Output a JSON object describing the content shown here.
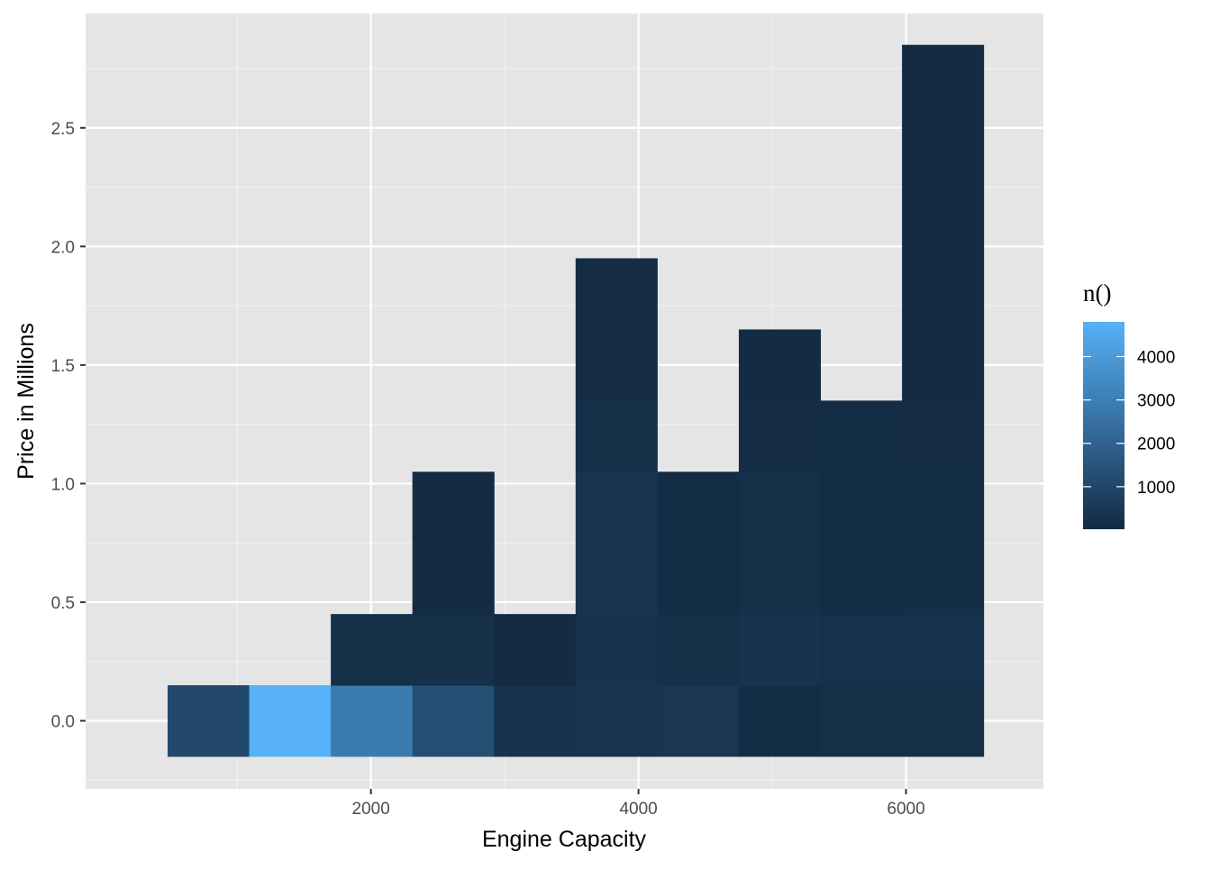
{
  "chart_data": {
    "type": "heatmap",
    "title": "",
    "xlabel": "Engine Capacity",
    "ylabel": "Price in Millions",
    "xlim": [
      -133,
      7027
    ],
    "ylim": [
      -0.287,
      2.982
    ],
    "x_ticks": [
      2000,
      4000,
      6000
    ],
    "x_tick_labels": [
      "2000",
      "4000",
      "6000"
    ],
    "x_minor": [
      1000,
      3000,
      5000
    ],
    "y_ticks": [
      0.0,
      0.5,
      1.0,
      1.5,
      2.0,
      2.5
    ],
    "y_tick_labels": [
      "0.0",
      "0.5",
      "1.0",
      "1.5",
      "2.0",
      "2.5"
    ],
    "y_minor": [
      -0.25,
      0.25,
      0.75,
      1.25,
      1.75,
      2.25,
      2.75
    ],
    "grid": true,
    "legend": {
      "title": "n()",
      "position": "right",
      "min": 20,
      "max": 4800,
      "breaks": [
        1000,
        2000,
        3000,
        4000
      ],
      "break_labels": [
        "1000",
        "2000",
        "3000",
        "4000"
      ],
      "color_low": "#132B43",
      "color_high": "#56B1F7"
    },
    "colors": {
      "panel_background": "#e5e5e5",
      "grid_major": "#ffffff",
      "grid_minor": "#f2f2f2",
      "tick": "#333333"
    },
    "cells": [
      {
        "x0": 480,
        "x1": 1090,
        "y0": -0.15,
        "y1": 0.15,
        "n": 1100
      },
      {
        "x0": 1090,
        "x1": 1700,
        "y0": -0.15,
        "y1": 0.15,
        "n": 4800
      },
      {
        "x0": 1700,
        "x1": 2310,
        "y0": -0.15,
        "y1": 0.15,
        "n": 2900
      },
      {
        "x0": 2310,
        "x1": 2920,
        "y0": -0.15,
        "y1": 0.15,
        "n": 1300
      },
      {
        "x0": 2920,
        "x1": 3530,
        "y0": -0.15,
        "y1": 0.15,
        "n": 300
      },
      {
        "x0": 3530,
        "x1": 4140,
        "y0": -0.15,
        "y1": 0.15,
        "n": 350
      },
      {
        "x0": 4140,
        "x1": 4750,
        "y0": -0.15,
        "y1": 0.15,
        "n": 420
      },
      {
        "x0": 4750,
        "x1": 5360,
        "y0": -0.15,
        "y1": 0.15,
        "n": 100
      },
      {
        "x0": 5360,
        "x1": 5970,
        "y0": -0.15,
        "y1": 0.15,
        "n": 150
      },
      {
        "x0": 5970,
        "x1": 6580,
        "y0": -0.15,
        "y1": 0.15,
        "n": 200
      },
      {
        "x0": 1700,
        "x1": 2310,
        "y0": 0.15,
        "y1": 0.45,
        "n": 200
      },
      {
        "x0": 2310,
        "x1": 2920,
        "y0": 0.15,
        "y1": 0.45,
        "n": 200
      },
      {
        "x0": 2920,
        "x1": 3530,
        "y0": 0.15,
        "y1": 0.45,
        "n": 20
      },
      {
        "x0": 3530,
        "x1": 4140,
        "y0": 0.15,
        "y1": 0.45,
        "n": 300
      },
      {
        "x0": 4140,
        "x1": 4750,
        "y0": 0.15,
        "y1": 0.45,
        "n": 200
      },
      {
        "x0": 4750,
        "x1": 5360,
        "y0": 0.15,
        "y1": 0.45,
        "n": 300
      },
      {
        "x0": 5360,
        "x1": 5970,
        "y0": 0.15,
        "y1": 0.45,
        "n": 250
      },
      {
        "x0": 5970,
        "x1": 6580,
        "y0": 0.15,
        "y1": 0.45,
        "n": 220
      },
      {
        "x0": 2310,
        "x1": 2920,
        "y0": 0.45,
        "y1": 1.05,
        "n": 40
      },
      {
        "x0": 3530,
        "x1": 4140,
        "y0": 0.45,
        "y1": 1.05,
        "n": 350
      },
      {
        "x0": 4140,
        "x1": 4750,
        "y0": 0.45,
        "y1": 1.05,
        "n": 100
      },
      {
        "x0": 4750,
        "x1": 5360,
        "y0": 0.45,
        "y1": 1.05,
        "n": 150
      },
      {
        "x0": 5360,
        "x1": 5970,
        "y0": 0.45,
        "y1": 1.05,
        "n": 100
      },
      {
        "x0": 5970,
        "x1": 6580,
        "y0": 0.45,
        "y1": 1.05,
        "n": 120
      },
      {
        "x0": 3530,
        "x1": 4140,
        "y0": 1.05,
        "y1": 1.35,
        "n": 180
      },
      {
        "x0": 4750,
        "x1": 5360,
        "y0": 1.05,
        "y1": 1.35,
        "n": 60
      },
      {
        "x0": 5360,
        "x1": 5970,
        "y0": 1.05,
        "y1": 1.35,
        "n": 100
      },
      {
        "x0": 5970,
        "x1": 6580,
        "y0": 1.05,
        "y1": 1.35,
        "n": 80
      },
      {
        "x0": 3530,
        "x1": 4140,
        "y0": 1.35,
        "y1": 1.95,
        "n": 80
      },
      {
        "x0": 4750,
        "x1": 5360,
        "y0": 1.35,
        "y1": 1.65,
        "n": 40
      },
      {
        "x0": 5970,
        "x1": 6580,
        "y0": 1.35,
        "y1": 2.85,
        "n": 40
      }
    ]
  }
}
